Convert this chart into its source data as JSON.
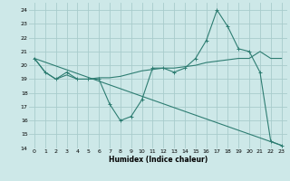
{
  "xlabel": "Humidex (Indice chaleur)",
  "xlim": [
    -0.5,
    23.5
  ],
  "ylim": [
    14,
    24.5
  ],
  "yticks": [
    14,
    15,
    16,
    17,
    18,
    19,
    20,
    21,
    22,
    23,
    24
  ],
  "xticks": [
    0,
    1,
    2,
    3,
    4,
    5,
    6,
    7,
    8,
    9,
    10,
    11,
    12,
    13,
    14,
    15,
    16,
    17,
    18,
    19,
    20,
    21,
    22,
    23
  ],
  "bg_color": "#cde8e8",
  "line_color": "#2e7d72",
  "grid_color": "#a8cccc",
  "line1_x": [
    0,
    1,
    2,
    3,
    4,
    5,
    6,
    7,
    8,
    9,
    10,
    11,
    12,
    13,
    14,
    15,
    16,
    17,
    18,
    19,
    20,
    21,
    22,
    23
  ],
  "line1_y": [
    20.5,
    19.5,
    19.0,
    19.5,
    19.0,
    19.0,
    19.0,
    17.2,
    16.0,
    16.3,
    17.5,
    19.8,
    19.8,
    19.5,
    19.8,
    20.5,
    21.8,
    24.0,
    22.8,
    21.2,
    21.0,
    19.5,
    14.5,
    14.2
  ],
  "line2_x": [
    0,
    1,
    2,
    3,
    4,
    5,
    6,
    7,
    8,
    9,
    10,
    11,
    12,
    13,
    14,
    15,
    16,
    17,
    18,
    19,
    20,
    21,
    22,
    23
  ],
  "line2_y": [
    20.5,
    19.5,
    19.0,
    19.3,
    19.0,
    19.0,
    19.1,
    19.1,
    19.2,
    19.4,
    19.6,
    19.7,
    19.8,
    19.8,
    19.9,
    20.0,
    20.2,
    20.3,
    20.4,
    20.5,
    20.5,
    21.0,
    20.5,
    20.5
  ],
  "line3_x": [
    0,
    23
  ],
  "line3_y": [
    20.5,
    14.2
  ]
}
